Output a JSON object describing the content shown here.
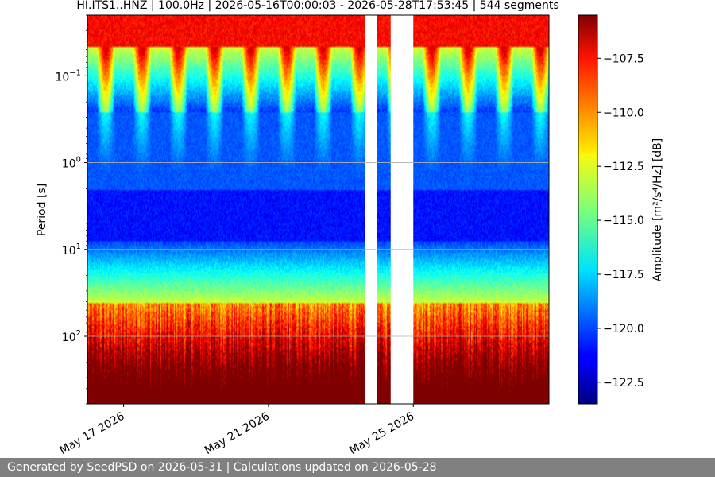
{
  "chart_data": {
    "type": "heatmap",
    "title": "HI.ITS1..HNZ | 100.0Hz | 2026-05-16T00:00:03 - 2026-05-28T17:53:45 | 544 segments",
    "xlabel": "",
    "ylabel": "Period [s]",
    "x_axis": {
      "type": "date",
      "start": "2026-05-16T00:00:03",
      "end": "2026-05-28T17:53:45",
      "tick_labels": [
        "May 17 2026",
        "May 21 2026",
        "May 25 2026"
      ],
      "tick_dates": [
        "2026-05-17",
        "2026-05-21",
        "2026-05-25"
      ]
    },
    "y_axis": {
      "scale": "log",
      "inverted": true,
      "range": [
        0.02,
        600
      ],
      "tick_values": [
        0.1,
        1,
        10,
        100
      ],
      "tick_labels": [
        "10",
        "10",
        "10",
        "10"
      ],
      "tick_exponents": [
        "−1",
        "0",
        "1",
        "2"
      ],
      "grid": true
    },
    "colorbar": {
      "colormap": "jet",
      "label": "Amplitude [m²/s⁴/Hz] [dB]",
      "range": [
        -123.5,
        -105.5
      ],
      "tick_values": [
        -107.5,
        -110.0,
        -112.5,
        -115.0,
        -117.5,
        -120.0,
        -122.5
      ],
      "tick_labels": [
        "−107.5",
        "−110.0",
        "−112.5",
        "−115.0",
        "−117.5",
        "−120.0",
        "−122.5"
      ]
    },
    "data_gaps": [
      {
        "start": "2026-05-23T16:00:00",
        "end": "2026-05-24T00:00:00"
      },
      {
        "start": "2026-05-24T09:00:00",
        "end": "2026-05-25T00:00:00"
      }
    ],
    "segments": 544,
    "daily_noise_cycle": true
  },
  "footer": {
    "text": "Generated by SeedPSD on 2026-05-31 | Calculations updated on 2026-05-28"
  }
}
